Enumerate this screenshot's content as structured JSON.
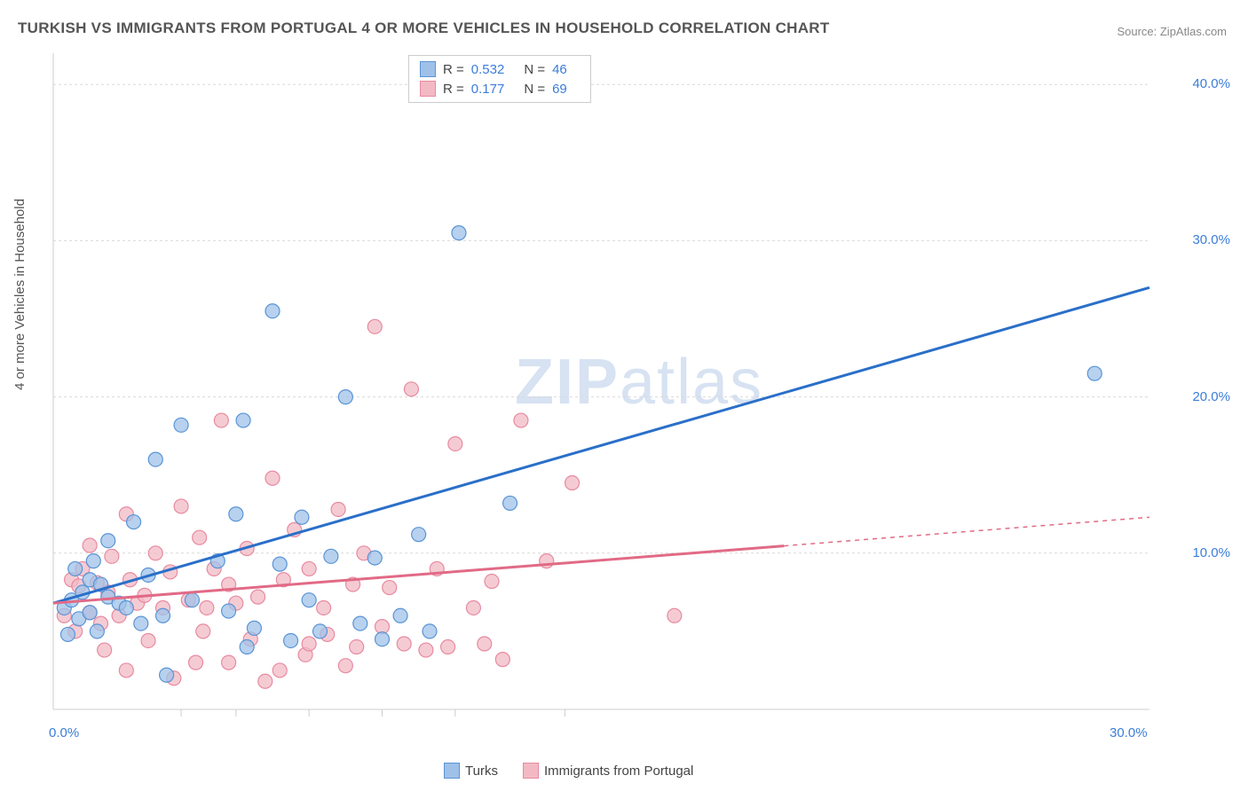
{
  "title": "TURKISH VS IMMIGRANTS FROM PORTUGAL 4 OR MORE VEHICLES IN HOUSEHOLD CORRELATION CHART",
  "source": "Source: ZipAtlas.com",
  "watermark": "ZIPatlas",
  "y_axis_label": "4 or more Vehicles in Household",
  "chart": {
    "type": "scatter",
    "background_color": "#ffffff",
    "grid_color": "#d9d9d9",
    "grid_dash": "3,3",
    "axis_color": "#cccccc",
    "x_domain": [
      0,
      30
    ],
    "y_domain": [
      0,
      42
    ],
    "x_ticks": [
      0,
      30
    ],
    "x_tick_labels": [
      "0.0%",
      "30.0%"
    ],
    "x_minor_ticks": [
      3.5,
      5,
      7,
      9,
      11,
      14
    ],
    "y_ticks": [
      10,
      20,
      30,
      40
    ],
    "y_tick_labels": [
      "10.0%",
      "20.0%",
      "30.0%",
      "40.0%"
    ],
    "tick_label_color": "#3b7dd8",
    "tick_label_fontsize": 15,
    "series": [
      {
        "name": "Turks",
        "fill_color": "#9fc1e8",
        "stroke_color": "#5a94d6",
        "marker_radius": 8,
        "marker_opacity": 0.75,
        "points": [
          [
            0.3,
            6.5
          ],
          [
            0.5,
            7.0
          ],
          [
            0.6,
            9.0
          ],
          [
            0.7,
            5.8
          ],
          [
            0.8,
            7.5
          ],
          [
            1.0,
            8.3
          ],
          [
            1.0,
            6.2
          ],
          [
            1.1,
            9.5
          ],
          [
            1.3,
            8.0
          ],
          [
            1.5,
            7.2
          ],
          [
            1.5,
            10.8
          ],
          [
            1.8,
            6.8
          ],
          [
            2.0,
            6.5
          ],
          [
            2.2,
            12.0
          ],
          [
            2.4,
            5.5
          ],
          [
            2.6,
            8.6
          ],
          [
            2.8,
            16.0
          ],
          [
            3.0,
            6.0
          ],
          [
            3.5,
            18.2
          ],
          [
            3.8,
            7.0
          ],
          [
            4.5,
            9.5
          ],
          [
            4.8,
            6.3
          ],
          [
            5.0,
            12.5
          ],
          [
            5.2,
            18.5
          ],
          [
            5.5,
            5.2
          ],
          [
            6.0,
            25.5
          ],
          [
            6.2,
            9.3
          ],
          [
            6.8,
            12.3
          ],
          [
            7.0,
            7.0
          ],
          [
            7.3,
            5.0
          ],
          [
            7.6,
            9.8
          ],
          [
            8.0,
            20.0
          ],
          [
            8.4,
            5.5
          ],
          [
            8.8,
            9.7
          ],
          [
            9.5,
            6.0
          ],
          [
            10.0,
            11.2
          ],
          [
            10.3,
            5.0
          ],
          [
            11.1,
            30.5
          ],
          [
            12.5,
            13.2
          ],
          [
            28.5,
            21.5
          ],
          [
            0.4,
            4.8
          ],
          [
            1.2,
            5.0
          ],
          [
            3.1,
            2.2
          ],
          [
            5.3,
            4.0
          ],
          [
            6.5,
            4.4
          ],
          [
            9.0,
            4.5
          ]
        ],
        "trend": {
          "x1": 0,
          "y1": 6.8,
          "x2": 30,
          "y2": 27.0,
          "color": "#2a6fc9",
          "width": 3,
          "dash_after_x": null
        }
      },
      {
        "name": "Immigrants from Portugal",
        "fill_color": "#f2b9c4",
        "stroke_color": "#e88aa0",
        "marker_radius": 8,
        "marker_opacity": 0.75,
        "points": [
          [
            0.3,
            6.0
          ],
          [
            0.5,
            8.3
          ],
          [
            0.7,
            7.9
          ],
          [
            0.8,
            9.0
          ],
          [
            1.0,
            10.5
          ],
          [
            1.0,
            6.2
          ],
          [
            1.2,
            8.1
          ],
          [
            1.3,
            5.5
          ],
          [
            1.5,
            7.5
          ],
          [
            1.6,
            9.8
          ],
          [
            1.8,
            6.0
          ],
          [
            2.0,
            12.5
          ],
          [
            2.1,
            8.3
          ],
          [
            2.3,
            6.8
          ],
          [
            2.5,
            7.3
          ],
          [
            2.8,
            10.0
          ],
          [
            3.0,
            6.5
          ],
          [
            3.2,
            8.8
          ],
          [
            3.5,
            13.0
          ],
          [
            3.7,
            7.0
          ],
          [
            4.0,
            11.0
          ],
          [
            4.2,
            6.5
          ],
          [
            4.4,
            9.0
          ],
          [
            4.6,
            18.5
          ],
          [
            4.8,
            8.0
          ],
          [
            5.0,
            6.8
          ],
          [
            5.3,
            10.3
          ],
          [
            5.6,
            7.2
          ],
          [
            6.0,
            14.8
          ],
          [
            6.3,
            8.3
          ],
          [
            6.6,
            11.5
          ],
          [
            7.0,
            9.0
          ],
          [
            7.4,
            6.5
          ],
          [
            7.8,
            12.8
          ],
          [
            8.2,
            8.0
          ],
          [
            8.5,
            10.0
          ],
          [
            8.8,
            24.5
          ],
          [
            9.2,
            7.8
          ],
          [
            9.8,
            20.5
          ],
          [
            10.5,
            9.0
          ],
          [
            11.0,
            17.0
          ],
          [
            11.5,
            6.5
          ],
          [
            12.0,
            8.2
          ],
          [
            12.8,
            18.5
          ],
          [
            13.5,
            9.5
          ],
          [
            14.2,
            14.5
          ],
          [
            17.0,
            6.0
          ],
          [
            0.6,
            5.0
          ],
          [
            1.4,
            3.8
          ],
          [
            2.0,
            2.5
          ],
          [
            2.6,
            4.4
          ],
          [
            3.3,
            2.0
          ],
          [
            4.1,
            5.0
          ],
          [
            4.8,
            3.0
          ],
          [
            5.4,
            4.5
          ],
          [
            6.2,
            2.5
          ],
          [
            6.9,
            3.5
          ],
          [
            7.5,
            4.8
          ],
          [
            8.0,
            2.8
          ],
          [
            8.3,
            4.0
          ],
          [
            9.0,
            5.3
          ],
          [
            9.6,
            4.2
          ],
          [
            10.2,
            3.8
          ],
          [
            10.8,
            4.0
          ],
          [
            11.8,
            4.2
          ],
          [
            12.3,
            3.2
          ],
          [
            7.0,
            4.2
          ],
          [
            5.8,
            1.8
          ],
          [
            3.9,
            3.0
          ]
        ],
        "trend": {
          "x1": 0,
          "y1": 6.8,
          "x2": 30,
          "y2": 12.3,
          "color": "#e16a86",
          "width": 3,
          "dash_after_x": 20
        }
      }
    ],
    "r_legend": {
      "rows": [
        {
          "swatch_fill": "#9fc1e8",
          "swatch_stroke": "#5a94d6",
          "r_label": "R =",
          "r_value": "0.532",
          "n_label": "N =",
          "n_value": "46"
        },
        {
          "swatch_fill": "#f2b9c4",
          "swatch_stroke": "#e88aa0",
          "r_label": "R =",
          "r_value": "0.177",
          "n_label": "N =",
          "n_value": "69"
        }
      ]
    },
    "bottom_legend": [
      {
        "swatch_fill": "#9fc1e8",
        "swatch_stroke": "#5a94d6",
        "label": "Turks"
      },
      {
        "swatch_fill": "#f2b9c4",
        "swatch_stroke": "#e88aa0",
        "label": "Immigrants from Portugal"
      }
    ]
  }
}
